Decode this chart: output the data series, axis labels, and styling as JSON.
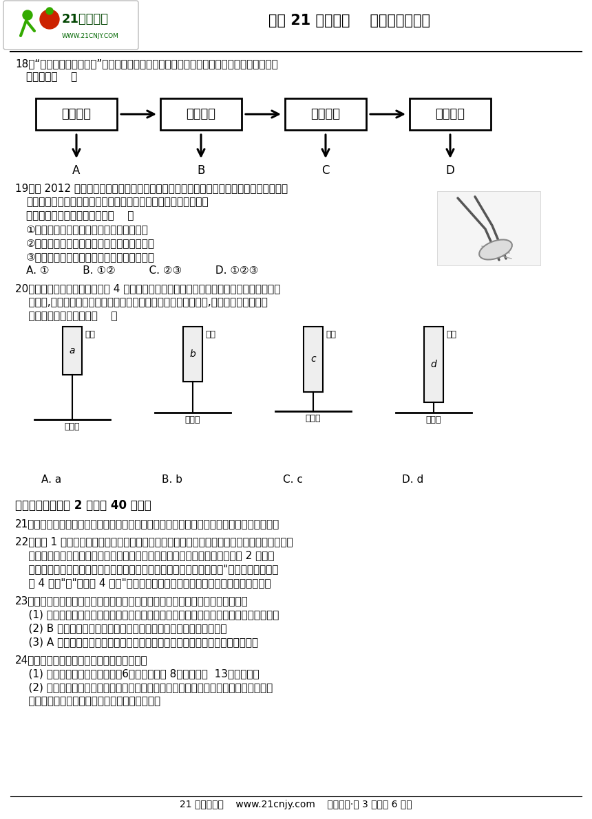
{
  "bg_color": "#ffffff",
  "header_right_text": "登陆 21 世纪教育    助您教考全无忧",
  "q18_boxes": [
    "一棵大树",
    "一片树叶",
    "一层表皮",
    "丁个细胞"
  ],
  "q18_labels": [
    "A",
    "B",
    "C",
    "D"
  ],
  "q20_options": [
    "A. a",
    "B. b",
    "C. c",
    "D. d"
  ],
  "footer_text": "21 世纪教育网    www.21cnjy.com    精品试卷·第 3 页（共 6 页）"
}
